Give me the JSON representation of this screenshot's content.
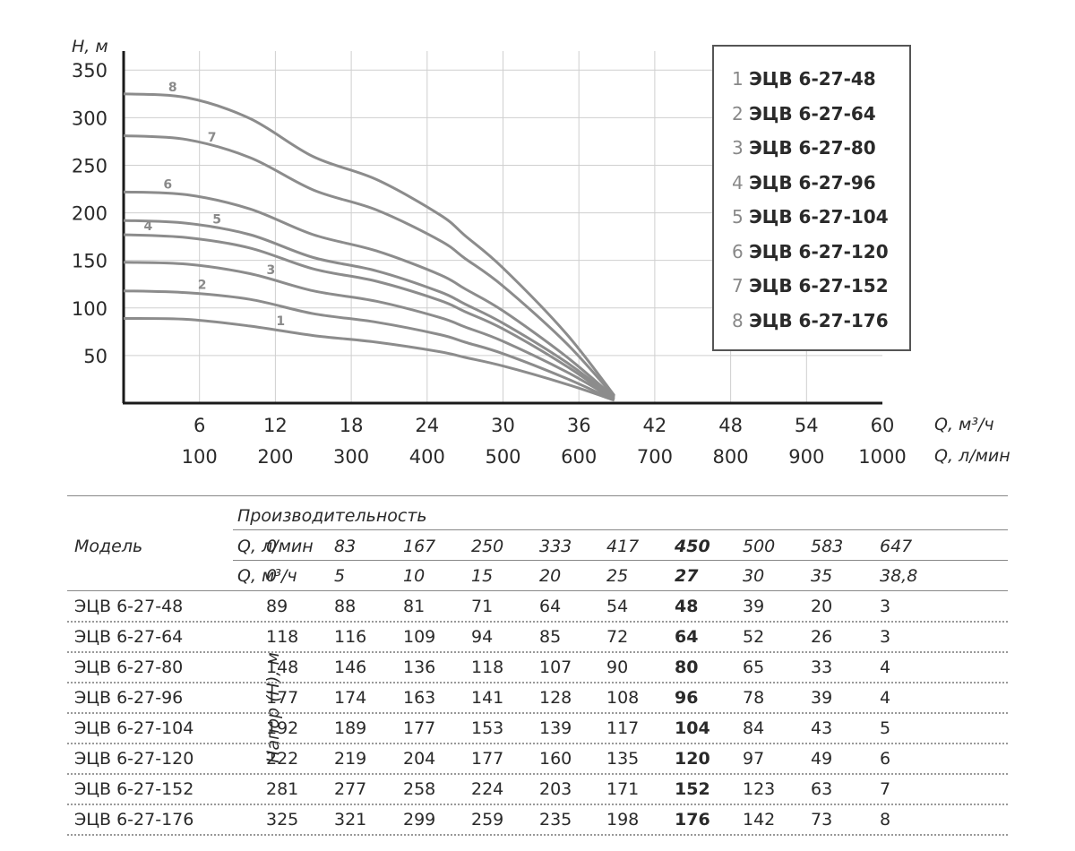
{
  "chart_data": {
    "type": "line",
    "ylabel": "H, м",
    "xlabel": "Q, м³/ч",
    "xlabel2": "Q, л/мин",
    "x_ticks": [
      "6",
      "12",
      "18",
      "24",
      "30",
      "36",
      "42",
      "48",
      "54",
      "60"
    ],
    "x2_ticks": [
      "100",
      "200",
      "300",
      "400",
      "500",
      "600",
      "700",
      "800",
      "900",
      "1000"
    ],
    "y_ticks": [
      "50",
      "100",
      "150",
      "200",
      "250",
      "300",
      "350"
    ],
    "xlim": [
      0,
      60
    ],
    "ylim": [
      0,
      370
    ],
    "x": [
      0,
      5,
      10,
      15,
      20,
      25,
      27,
      30,
      35,
      38.8
    ],
    "series": [
      {
        "name": "1",
        "values": [
          89,
          88,
          81,
          71,
          64,
          54,
          48,
          39,
          20,
          3
        ]
      },
      {
        "name": "2",
        "values": [
          118,
          116,
          109,
          94,
          85,
          72,
          64,
          52,
          26,
          3
        ]
      },
      {
        "name": "3",
        "values": [
          148,
          146,
          136,
          118,
          107,
          90,
          80,
          65,
          33,
          4
        ]
      },
      {
        "name": "4",
        "values": [
          177,
          174,
          163,
          141,
          128,
          108,
          96,
          78,
          39,
          4
        ]
      },
      {
        "name": "5",
        "values": [
          192,
          189,
          177,
          153,
          139,
          117,
          104,
          84,
          43,
          5
        ]
      },
      {
        "name": "6",
        "values": [
          222,
          219,
          204,
          177,
          160,
          135,
          120,
          97,
          49,
          6
        ]
      },
      {
        "name": "7",
        "values": [
          281,
          277,
          258,
          224,
          203,
          171,
          152,
          123,
          63,
          7
        ]
      },
      {
        "name": "8",
        "values": [
          325,
          321,
          299,
          259,
          235,
          198,
          176,
          142,
          73,
          8
        ]
      }
    ],
    "line_color": "#8c8c8c",
    "grid": true
  },
  "legend": [
    {
      "num": "1",
      "name": "ЭЦВ 6-27-48"
    },
    {
      "num": "2",
      "name": "ЭЦВ 6-27-64"
    },
    {
      "num": "3",
      "name": "ЭЦВ 6-27-80"
    },
    {
      "num": "4",
      "name": "ЭЦВ 6-27-96"
    },
    {
      "num": "5",
      "name": "ЭЦВ 6-27-104"
    },
    {
      "num": "6",
      "name": "ЭЦВ 6-27-120"
    },
    {
      "num": "7",
      "name": "ЭЦВ 6-27-152"
    },
    {
      "num": "8",
      "name": "ЭЦВ 6-27-176"
    }
  ],
  "table": {
    "model_header": "Модель",
    "perf_header": "Производительность",
    "q_lmin_label": "Q, л/мин",
    "q_m3h_label": "Q, м³/ч",
    "head_label": "Напор (H), м",
    "q_lmin": [
      "0",
      "83",
      "167",
      "250",
      "333",
      "417",
      "450",
      "500",
      "583",
      "647"
    ],
    "q_m3h": [
      "0",
      "5",
      "10",
      "15",
      "20",
      "25",
      "27",
      "30",
      "35",
      "38,8"
    ],
    "bold_col": 6,
    "rows": [
      {
        "model": "ЭЦВ 6-27-48",
        "values": [
          "89",
          "88",
          "81",
          "71",
          "64",
          "54",
          "48",
          "39",
          "20",
          "3"
        ]
      },
      {
        "model": "ЭЦВ 6-27-64",
        "values": [
          "118",
          "116",
          "109",
          "94",
          "85",
          "72",
          "64",
          "52",
          "26",
          "3"
        ]
      },
      {
        "model": "ЭЦВ 6-27-80",
        "values": [
          "148",
          "146",
          "136",
          "118",
          "107",
          "90",
          "80",
          "65",
          "33",
          "4"
        ]
      },
      {
        "model": "ЭЦВ 6-27-96",
        "values": [
          "177",
          "174",
          "163",
          "141",
          "128",
          "108",
          "96",
          "78",
          "39",
          "4"
        ]
      },
      {
        "model": "ЭЦВ 6-27-104",
        "values": [
          "192",
          "189",
          "177",
          "153",
          "139",
          "117",
          "104",
          "84",
          "43",
          "5"
        ]
      },
      {
        "model": "ЭЦВ 6-27-120",
        "values": [
          "222",
          "219",
          "204",
          "177",
          "160",
          "135",
          "120",
          "97",
          "49",
          "6"
        ]
      },
      {
        "model": "ЭЦВ 6-27-152",
        "values": [
          "281",
          "277",
          "258",
          "224",
          "203",
          "171",
          "152",
          "123",
          "63",
          "7"
        ]
      },
      {
        "model": "ЭЦВ 6-27-176",
        "values": [
          "325",
          "321",
          "299",
          "259",
          "235",
          "198",
          "176",
          "142",
          "73",
          "8"
        ]
      }
    ]
  }
}
